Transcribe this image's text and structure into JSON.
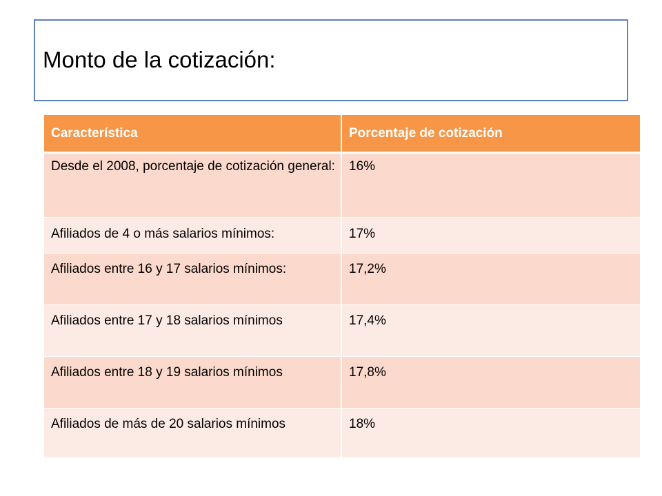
{
  "slide": {
    "title": "Monto de la cotización:"
  },
  "table": {
    "headers": [
      "Característica",
      "Porcentaje de cotización"
    ],
    "rows": [
      [
        "Desde el 2008, porcentaje de cotización general:",
        "16%"
      ],
      [
        "Afiliados de 4 o más salarios mínimos:",
        "17%"
      ],
      [
        "Afiliados entre 16 y 17 salarios mínimos:",
        "17,2%"
      ],
      [
        "Afiliados entre 17 y 18 salarios mínimos",
        "17,4%"
      ],
      [
        "Afiliados entre 18 y 19 salarios mínimos",
        "17,8%"
      ],
      [
        "Afiliados de más de 20 salarios mínimos",
        "18%"
      ]
    ]
  },
  "colors": {
    "header_bg": "#f79646",
    "row_dark": "#fbd9cc",
    "row_light": "#fceae5",
    "title_border": "#5b7fbf"
  }
}
